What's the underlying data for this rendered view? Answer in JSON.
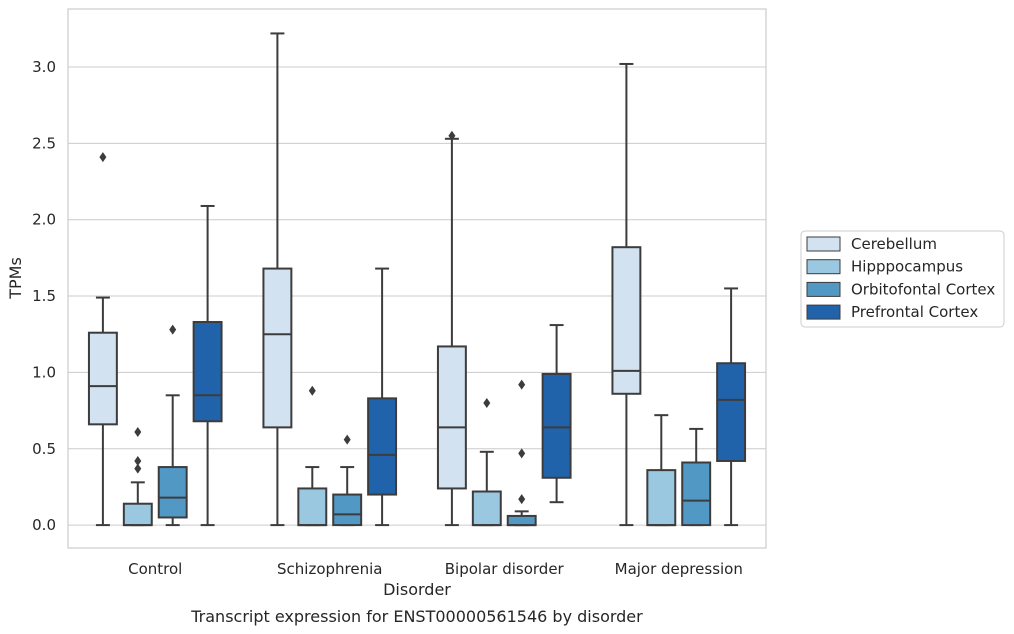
{
  "chart_data": {
    "type": "boxplot",
    "xlabel": "Disorder",
    "ylabel": "TPMs",
    "caption": "Transcript expression for ENST00000561546 by disorder",
    "ylim": [
      -0.15,
      3.38
    ],
    "yticks": [
      0.0,
      0.5,
      1.0,
      1.5,
      2.0,
      2.5,
      3.0
    ],
    "ytick_labels": [
      "0.0",
      "0.5",
      "1.0",
      "1.5",
      "2.0",
      "2.5",
      "3.0"
    ],
    "grid": "horizontal",
    "legend_position": "right",
    "categories": [
      "Control",
      "Schizophrenia",
      "Bipolar disorder",
      "Major depression"
    ],
    "series": [
      {
        "name": "Cerebellum",
        "color": "#d2e2f1",
        "boxes": [
          {
            "whislo": 0.0,
            "q1": 0.66,
            "med": 0.91,
            "q3": 1.26,
            "whishi": 1.49,
            "fliers": [
              2.41
            ]
          },
          {
            "whislo": 0.0,
            "q1": 0.64,
            "med": 1.25,
            "q3": 1.68,
            "whishi": 3.22,
            "fliers": []
          },
          {
            "whislo": 0.0,
            "q1": 0.24,
            "med": 0.64,
            "q3": 1.17,
            "whishi": 2.53,
            "fliers": [
              2.55
            ]
          },
          {
            "whislo": 0.0,
            "q1": 0.86,
            "med": 1.01,
            "q3": 1.82,
            "whishi": 3.02,
            "fliers": []
          }
        ]
      },
      {
        "name": "Hipppocampus",
        "color": "#9ac8e0",
        "boxes": [
          {
            "whislo": 0.0,
            "q1": 0.0,
            "med": 0.0,
            "q3": 0.14,
            "whishi": 0.28,
            "fliers": [
              0.37,
              0.42,
              0.61
            ]
          },
          {
            "whislo": 0.0,
            "q1": 0.0,
            "med": 0.0,
            "q3": 0.24,
            "whishi": 0.38,
            "fliers": [
              0.88
            ]
          },
          {
            "whislo": 0.0,
            "q1": 0.0,
            "med": 0.0,
            "q3": 0.22,
            "whishi": 0.48,
            "fliers": [
              0.8
            ]
          },
          {
            "whislo": 0.0,
            "q1": 0.0,
            "med": 0.0,
            "q3": 0.36,
            "whishi": 0.72,
            "fliers": []
          }
        ]
      },
      {
        "name": "Orbitofontal Cortex",
        "color": "#5198c5",
        "boxes": [
          {
            "whislo": 0.0,
            "q1": 0.05,
            "med": 0.18,
            "q3": 0.38,
            "whishi": 0.85,
            "fliers": [
              1.28
            ]
          },
          {
            "whislo": 0.0,
            "q1": 0.0,
            "med": 0.07,
            "q3": 0.2,
            "whishi": 0.38,
            "fliers": [
              0.56
            ]
          },
          {
            "whislo": 0.0,
            "q1": 0.0,
            "med": 0.0,
            "q3": 0.06,
            "whishi": 0.09,
            "fliers": [
              0.17,
              0.47,
              0.92
            ]
          },
          {
            "whislo": 0.0,
            "q1": 0.0,
            "med": 0.16,
            "q3": 0.41,
            "whishi": 0.63,
            "fliers": []
          }
        ]
      },
      {
        "name": "Prefrontal Cortex",
        "color": "#2163aa",
        "boxes": [
          {
            "whislo": 0.0,
            "q1": 0.68,
            "med": 0.85,
            "q3": 1.33,
            "whishi": 2.09,
            "fliers": []
          },
          {
            "whislo": 0.0,
            "q1": 0.2,
            "med": 0.46,
            "q3": 0.83,
            "whishi": 1.68,
            "fliers": []
          },
          {
            "whislo": 0.15,
            "q1": 0.31,
            "med": 0.64,
            "q3": 0.99,
            "whishi": 1.31,
            "fliers": []
          },
          {
            "whislo": 0.0,
            "q1": 0.42,
            "med": 0.82,
            "q3": 1.06,
            "whishi": 1.55,
            "fliers": []
          }
        ]
      }
    ]
  }
}
